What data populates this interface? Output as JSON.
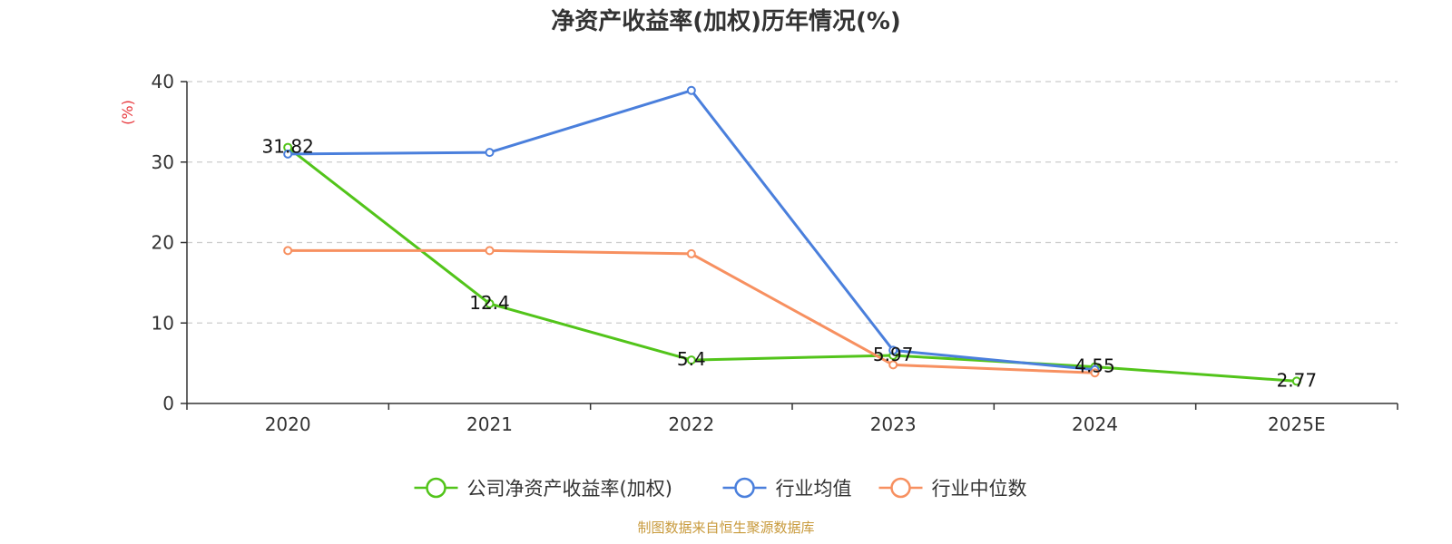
{
  "chart_data": {
    "type": "line",
    "title": "净资产收益率(加权)历年情况(%)",
    "ylabel": "(%)",
    "xlabel": "",
    "categories": [
      "2020",
      "2021",
      "2022",
      "2023",
      "2024",
      "2025E"
    ],
    "ylim": [
      0,
      40
    ],
    "yticks": [
      0,
      10,
      20,
      30,
      40
    ],
    "grid": true,
    "legend_position": "bottom",
    "series": [
      {
        "name": "公司净资产收益率(加权)",
        "color": "#52c41a",
        "values": [
          31.82,
          12.4,
          5.4,
          5.97,
          4.55,
          2.77
        ],
        "labels": [
          "31.82",
          "12.4",
          "5.4",
          "5.97",
          "4.55",
          "2.77"
        ]
      },
      {
        "name": "行业均值",
        "color": "#4a7fdc",
        "values": [
          31.0,
          31.2,
          38.9,
          6.6,
          4.2,
          null
        ]
      },
      {
        "name": "行业中位数",
        "color": "#f79060",
        "values": [
          19.0,
          19.0,
          18.6,
          4.8,
          3.8,
          null
        ]
      }
    ]
  },
  "footer": {
    "source": "制图数据来自恒生聚源数据库"
  }
}
